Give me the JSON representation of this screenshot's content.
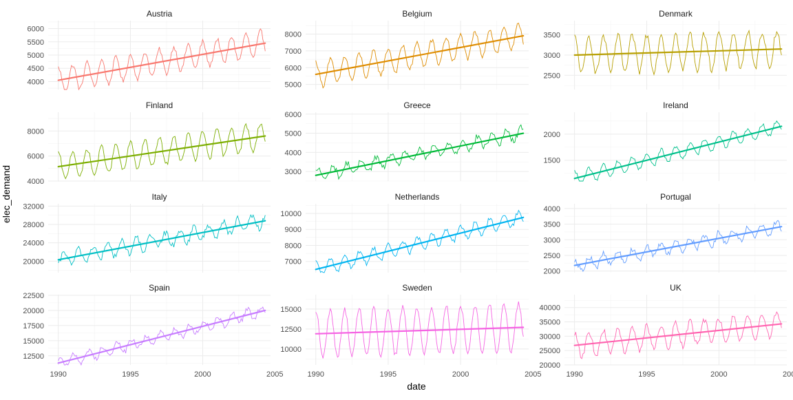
{
  "chart_data": {
    "type": "line",
    "xlabel": "date",
    "ylabel": "elec_demand",
    "x_range": [
      1990,
      2004.33
    ],
    "x_ticks": [
      1990,
      1995,
      2000,
      2005
    ],
    "grid": true,
    "legend": "none",
    "facets": [
      {
        "name": "Austria",
        "color": "#F8766D",
        "ylim": [
          3700,
          6300
        ],
        "y_ticks": [
          4000,
          4500,
          5000,
          5500,
          6000
        ],
        "trend": [
          4050,
          5450
        ],
        "season_amp": 480,
        "noise": 90,
        "phase": 0.0
      },
      {
        "name": "Belgium",
        "color": "#DE8C00",
        "ylim": [
          4700,
          8800
        ],
        "y_ticks": [
          5000,
          6000,
          7000,
          8000
        ],
        "trend": [
          5600,
          7900
        ],
        "season_amp": 750,
        "noise": 150,
        "phase": 0.0
      },
      {
        "name": "Denmark",
        "color": "#B79F00",
        "ylim": [
          2150,
          3850
        ],
        "y_ticks": [
          2500,
          3000,
          3500
        ],
        "trend": [
          3000,
          3150
        ],
        "season_amp": 450,
        "noise": 90,
        "phase": 0.0
      },
      {
        "name": "Finland",
        "color": "#7CAE00",
        "ylim": [
          4000,
          9500
        ],
        "y_ticks": [
          4000,
          6000,
          8000
        ],
        "trend": [
          5150,
          7600
        ],
        "season_amp": 1100,
        "noise": 180,
        "phase": 0.0
      },
      {
        "name": "Greece",
        "color": "#00BA38",
        "ylim": [
          2500,
          6100
        ],
        "y_ticks": [
          3000,
          4000,
          5000,
          6000
        ],
        "trend": [
          2800,
          5000
        ],
        "season_amp": 320,
        "noise": 160,
        "phase": 2.0
      },
      {
        "name": "Ireland",
        "color": "#00C08B",
        "ylim": [
          1100,
          2420
        ],
        "y_ticks": [
          1500,
          2000
        ],
        "trend": [
          1150,
          2150
        ],
        "season_amp": 130,
        "noise": 35,
        "phase": 0.0
      },
      {
        "name": "Italy",
        "color": "#00BFC4",
        "ylim": [
          17500,
          32500
        ],
        "y_ticks": [
          20000,
          24000,
          28000,
          32000
        ],
        "trend": [
          20300,
          28800
        ],
        "season_amp": 1500,
        "noise": 700,
        "phase": 5.0
      },
      {
        "name": "Netherlands",
        "color": "#00B4F0",
        "ylim": [
          6300,
          10600
        ],
        "y_ticks": [
          7000,
          8000,
          9000,
          10000
        ],
        "trend": [
          6500,
          9750
        ],
        "season_amp": 420,
        "noise": 150,
        "phase": 0.0
      },
      {
        "name": "Portugal",
        "color": "#619CFF",
        "ylim": [
          1950,
          4150
        ],
        "y_ticks": [
          2000,
          2500,
          3000,
          3500,
          4000
        ],
        "trend": [
          2180,
          3420
        ],
        "season_amp": 190,
        "noise": 95,
        "phase": 0.0
      },
      {
        "name": "Spain",
        "color": "#C77CFF",
        "ylim": [
          11000,
          22600
        ],
        "y_ticks": [
          12500,
          15000,
          17500,
          20000,
          22500
        ],
        "trend": [
          11300,
          20000
        ],
        "season_amp": 900,
        "noise": 450,
        "phase": 1.0
      },
      {
        "name": "Sweden",
        "color": "#F564E3",
        "ylim": [
          8000,
          16800
        ],
        "y_ticks": [
          10000,
          12500,
          15000
        ],
        "trend": [
          11900,
          12700
        ],
        "season_amp": 3000,
        "noise": 350,
        "phase": 0.0
      },
      {
        "name": "UK",
        "color": "#FF64B0",
        "ylim": [
          20000,
          44500
        ],
        "y_ticks": [
          20000,
          25000,
          30000,
          35000,
          40000
        ],
        "trend": [
          26800,
          34300
        ],
        "season_amp": 4200,
        "noise": 1000,
        "phase": 0.0
      }
    ]
  }
}
